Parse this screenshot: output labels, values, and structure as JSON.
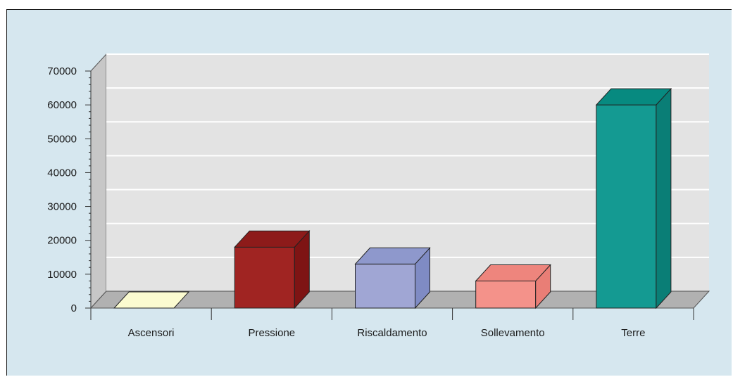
{
  "chart_data": {
    "type": "bar",
    "style": "3d",
    "categories": [
      "Ascensori",
      "Pressione",
      "Riscaldamento",
      "Sollevamento",
      "Terre"
    ],
    "values": [
      0,
      18000,
      13000,
      8000,
      60000
    ],
    "ylim": [
      0,
      70000
    ],
    "yticks": [
      0,
      10000,
      20000,
      30000,
      40000,
      50000,
      60000,
      70000
    ],
    "grid": true,
    "legend": "none",
    "colors": {
      "bars": [
        {
          "front": "#f7f7b5",
          "side": "#d9d98e",
          "top": "#fbfbd0"
        },
        {
          "front": "#a02422",
          "side": "#7e1414",
          "top": "#8d1b1a"
        },
        {
          "front": "#a0a6d4",
          "side": "#7f8bc4",
          "top": "#8e98cc"
        },
        {
          "front": "#f4928a",
          "side": "#e97e76",
          "top": "#ee857d"
        },
        {
          "front": "#149a92",
          "side": "#0a7e76",
          "top": "#078a80"
        }
      ],
      "wall": "#e3e3e3",
      "side_wall": "#c7c7c7",
      "floor": "#b1b1b1",
      "gridline": "#ffffff",
      "frame_bg": "#d6e7ef"
    }
  }
}
